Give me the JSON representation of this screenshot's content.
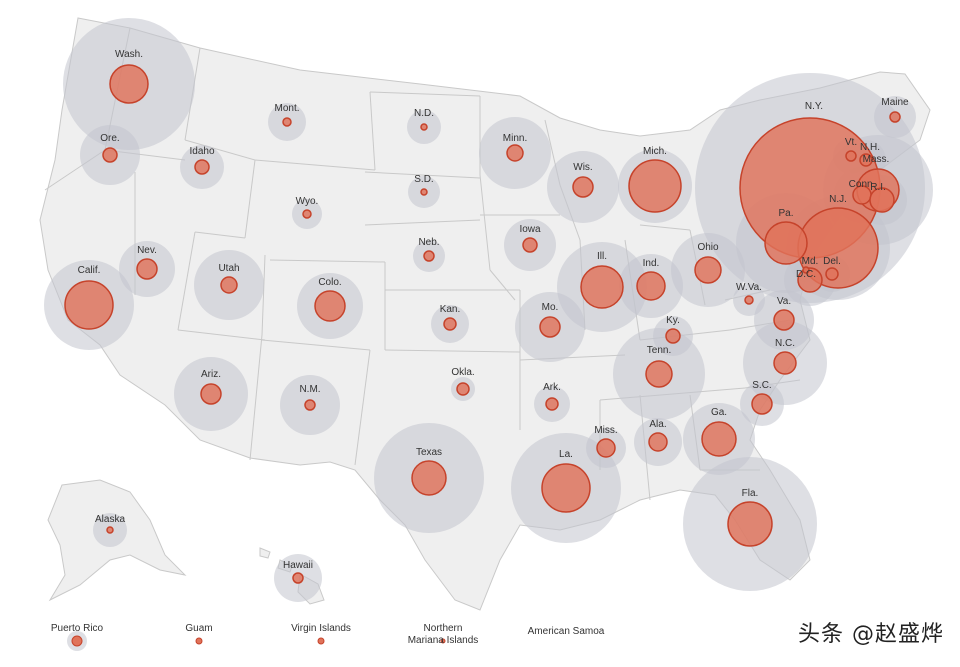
{
  "map": {
    "colors": {
      "land": "#efefef",
      "border": "#c9c9c9",
      "outer_circle": "#c2c5cd",
      "inner_circle": "#e0735a",
      "inner_stroke": "#c6432b",
      "label": "#333333"
    },
    "states": [
      {
        "id": "wa",
        "label": "Wash."
      },
      {
        "id": "or",
        "label": "Ore."
      },
      {
        "id": "id",
        "label": "Idaho"
      },
      {
        "id": "mt",
        "label": "Mont."
      },
      {
        "id": "nd",
        "label": "N.D."
      },
      {
        "id": "mn",
        "label": "Minn."
      },
      {
        "id": "wi",
        "label": "Wis."
      },
      {
        "id": "mi",
        "label": "Mich."
      },
      {
        "id": "ny",
        "label": "N.Y."
      },
      {
        "id": "vt",
        "label": "Vt."
      },
      {
        "id": "nh",
        "label": "N.H."
      },
      {
        "id": "me",
        "label": "Maine"
      },
      {
        "id": "ma",
        "label": "Mass."
      },
      {
        "id": "ct",
        "label": "Conn."
      },
      {
        "id": "ri",
        "label": "R.I."
      },
      {
        "id": "nj",
        "label": "N.J."
      },
      {
        "id": "pa",
        "label": "Pa."
      },
      {
        "id": "sd",
        "label": "S.D."
      },
      {
        "id": "wy",
        "label": "Wyo."
      },
      {
        "id": "ia",
        "label": "Iowa"
      },
      {
        "id": "ne",
        "label": "Neb."
      },
      {
        "id": "nv",
        "label": "Nev."
      },
      {
        "id": "ut",
        "label": "Utah"
      },
      {
        "id": "co",
        "label": "Colo."
      },
      {
        "id": "ca",
        "label": "Calif."
      },
      {
        "id": "il",
        "label": "Ill."
      },
      {
        "id": "in",
        "label": "Ind."
      },
      {
        "id": "oh",
        "label": "Ohio"
      },
      {
        "id": "wv",
        "label": "W.Va."
      },
      {
        "id": "md",
        "label": "Md."
      },
      {
        "id": "de",
        "label": "Del."
      },
      {
        "id": "dc",
        "label": "D.C."
      },
      {
        "id": "va",
        "label": "Va."
      },
      {
        "id": "ks",
        "label": "Kan."
      },
      {
        "id": "mo",
        "label": "Mo."
      },
      {
        "id": "ky",
        "label": "Ky."
      },
      {
        "id": "tn",
        "label": "Tenn."
      },
      {
        "id": "nc",
        "label": "N.C."
      },
      {
        "id": "sc",
        "label": "S.C."
      },
      {
        "id": "ok",
        "label": "Okla."
      },
      {
        "id": "ar",
        "label": "Ark."
      },
      {
        "id": "ms",
        "label": "Miss."
      },
      {
        "id": "al",
        "label": "Ala."
      },
      {
        "id": "ga",
        "label": "Ga."
      },
      {
        "id": "az",
        "label": "Ariz."
      },
      {
        "id": "nm",
        "label": "N.M."
      },
      {
        "id": "tx",
        "label": "Texas"
      },
      {
        "id": "la",
        "label": "La."
      },
      {
        "id": "fl",
        "label": "Fla."
      },
      {
        "id": "ak",
        "label": "Alaska"
      },
      {
        "id": "hi",
        "label": "Hawaii"
      }
    ],
    "territories": [
      {
        "id": "pr",
        "label": "Puerto Rico"
      },
      {
        "id": "gu",
        "label": "Guam"
      },
      {
        "id": "vi",
        "label": "Virgin Islands"
      },
      {
        "id": "mp",
        "label": [
          "Northern",
          "Mariana Islands"
        ]
      },
      {
        "id": "as",
        "label": "American Samoa"
      }
    ]
  },
  "watermark": "头条 @赵盛烨"
}
